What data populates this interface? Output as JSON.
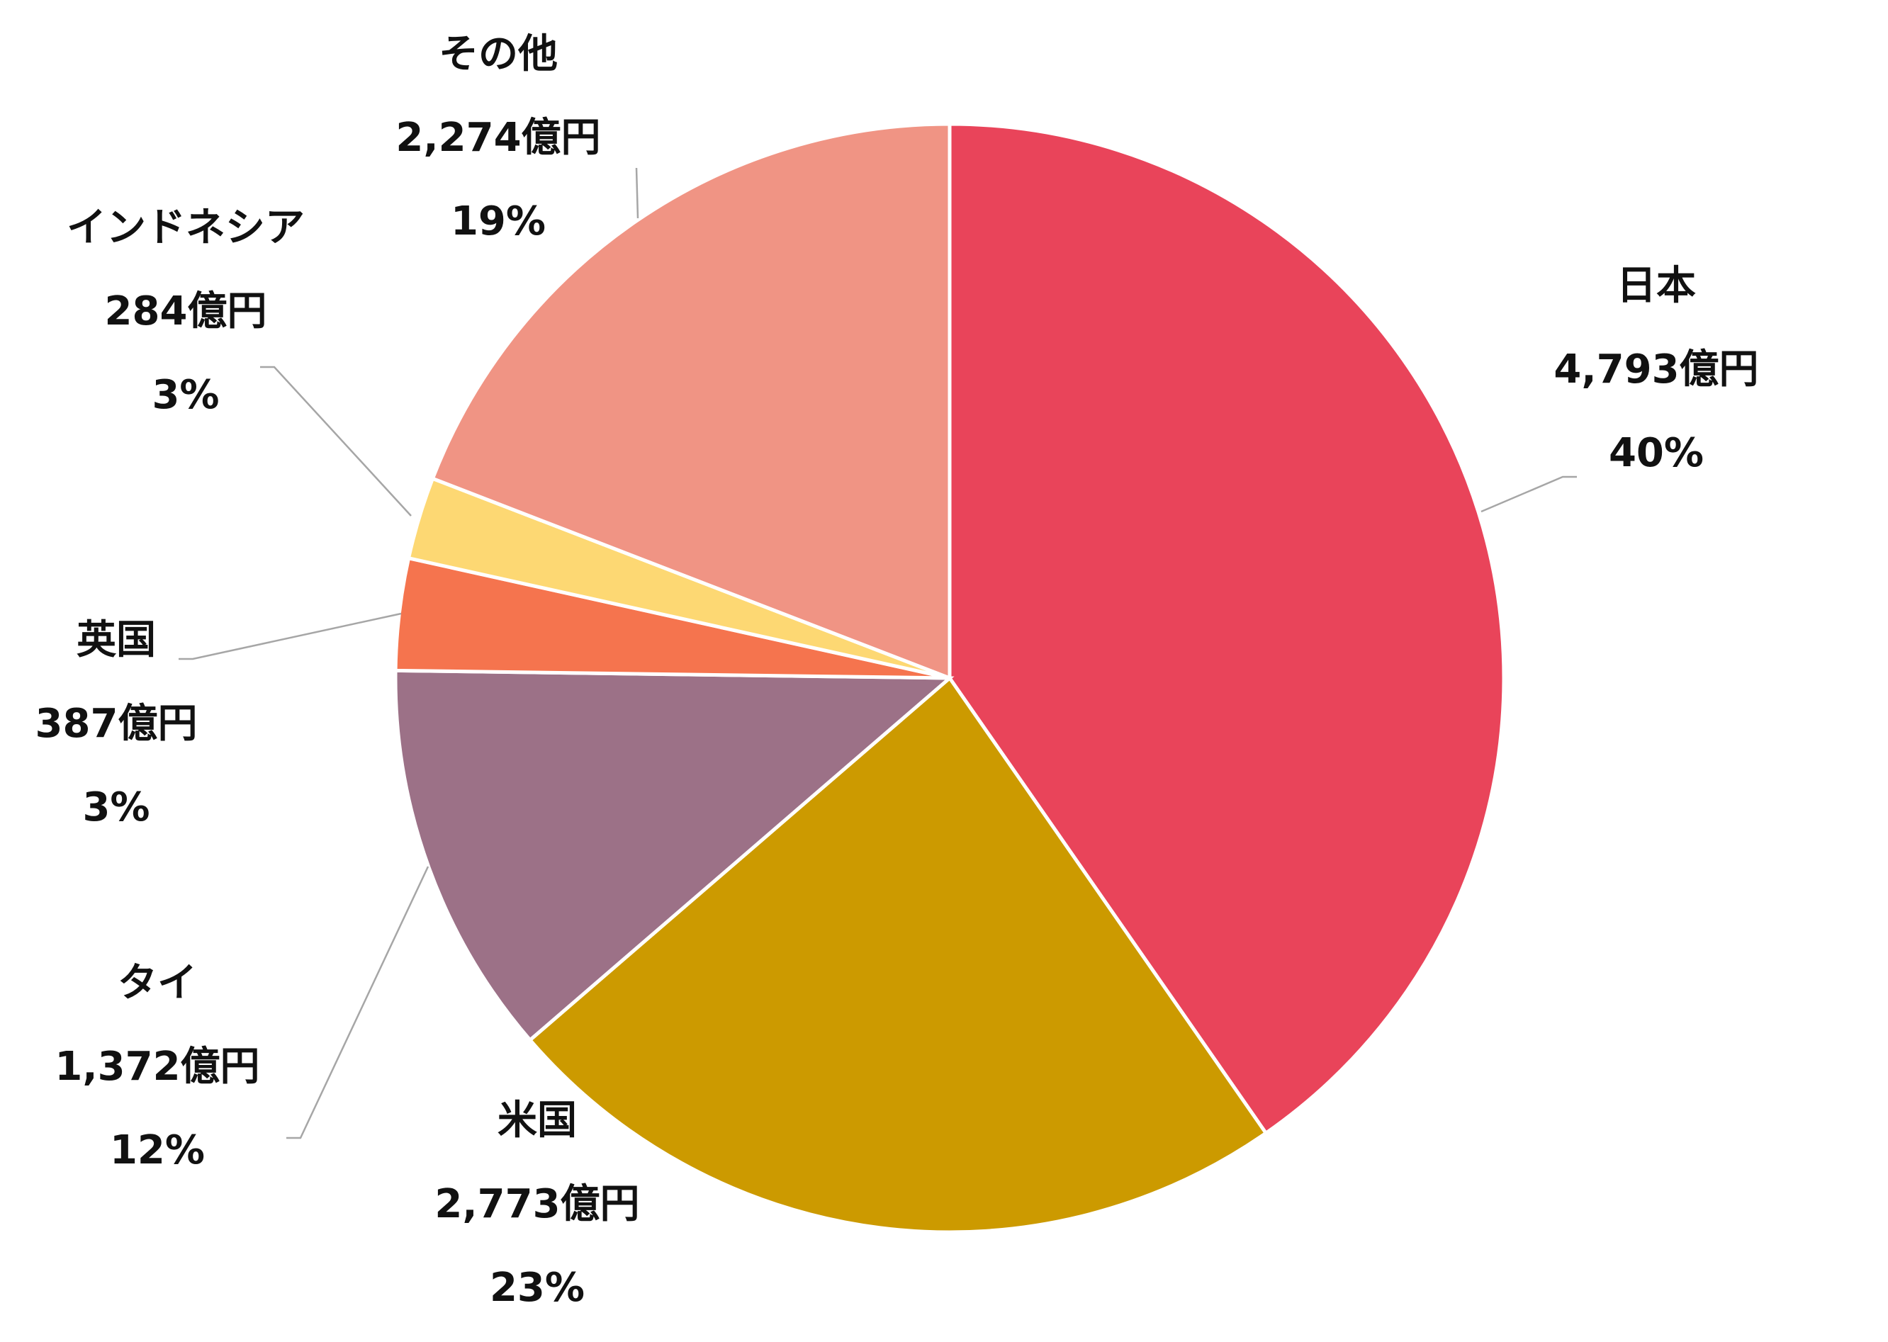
{
  "chart_data": {
    "type": "pie",
    "start": "12 o'clock",
    "direction": "clockwise",
    "slices": [
      {
        "name": "日本",
        "value": 4793,
        "value_label": "4,793億円",
        "percent_label": "40%",
        "color": "#E9445A"
      },
      {
        "name": "米国",
        "value": 2773,
        "value_label": "2,773億円",
        "percent_label": "23%",
        "color": "#CC9A00"
      },
      {
        "name": "タイ",
        "value": 1372,
        "value_label": "1,372億円",
        "percent_label": "12%",
        "color": "#9C7187"
      },
      {
        "name": "英国",
        "value": 387,
        "value_label": "387億円",
        "percent_label": "3%",
        "color": "#F5744E"
      },
      {
        "name": "インドネシア",
        "value": 284,
        "value_label": "284億円",
        "percent_label": "3%",
        "color": "#FDD873"
      },
      {
        "name": "その他",
        "value": 2274,
        "value_label": "2,274億円",
        "percent_label": "19%",
        "color": "#F09484"
      }
    ]
  }
}
